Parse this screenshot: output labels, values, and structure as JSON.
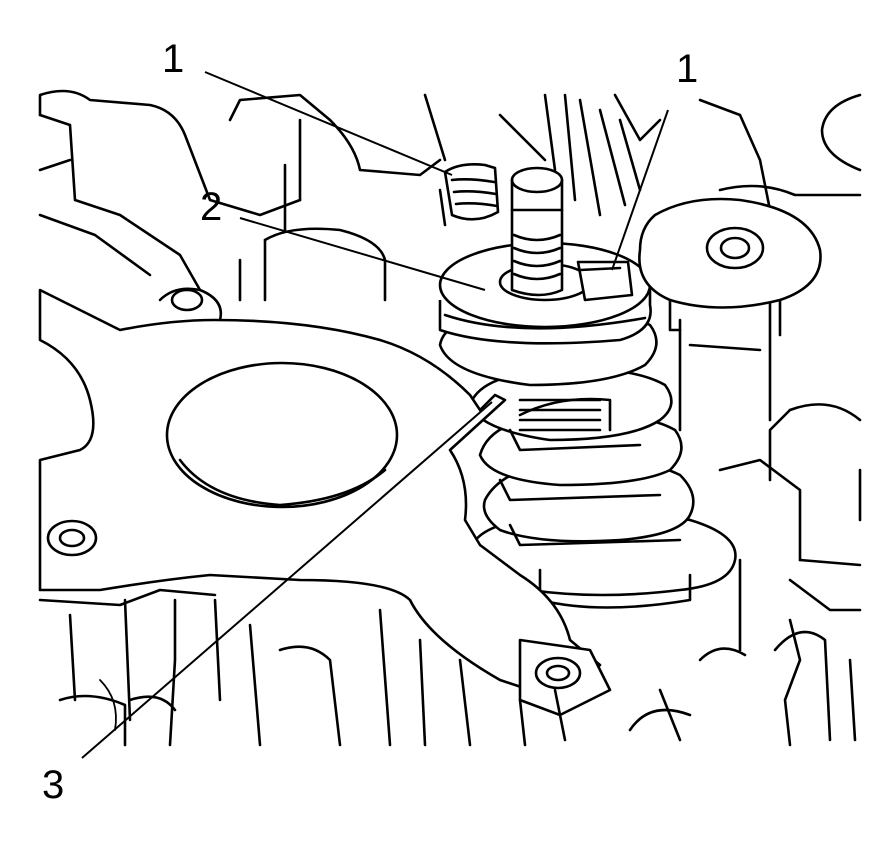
{
  "callouts": [
    {
      "id": "1a",
      "text": "1"
    },
    {
      "id": "1b",
      "text": "1"
    },
    {
      "id": "2",
      "text": "2"
    },
    {
      "id": "3",
      "text": "3"
    }
  ]
}
